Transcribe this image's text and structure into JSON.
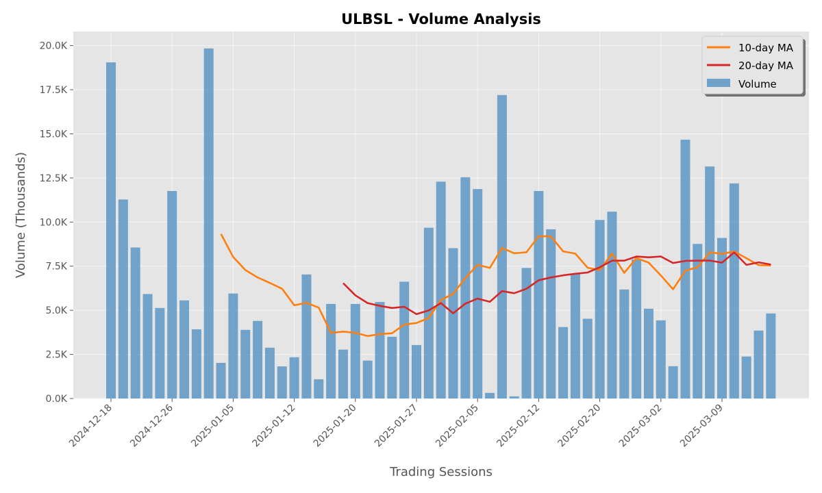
{
  "chart_data": {
    "type": "bar",
    "title": "ULBSL - Volume Analysis",
    "xlabel": "Trading Sessions",
    "ylabel": "Volume (Thousands)",
    "ylim": [
      0,
      20800
    ],
    "yticks": [
      0,
      2500,
      5000,
      7500,
      10000,
      12500,
      15000,
      17500,
      20000
    ],
    "ytick_labels": [
      "0.0K",
      "2.5K",
      "5.0K",
      "7.5K",
      "10.0K",
      "12.5K",
      "15.0K",
      "17.5K",
      "20.0K"
    ],
    "xtick_labels": [
      "2024-12-18",
      "2024-12-26",
      "2025-01-05",
      "2025-01-12",
      "2025-01-20",
      "2025-01-27",
      "2025-02-05",
      "2025-02-12",
      "2025-02-20",
      "2025-03-02",
      "2025-03-09"
    ],
    "xtick_positions": [
      0,
      5,
      10,
      15,
      20,
      25,
      30,
      35,
      40,
      45,
      50
    ],
    "grid": true,
    "legend_position": "top-right",
    "colors": {
      "volume": "#5d98c6",
      "ma10": "#ff7f0e",
      "ma20": "#d62728",
      "plot_bg": "#e5e5e5",
      "grid": "#f5f5f5"
    },
    "series": [
      {
        "name": "Volume",
        "kind": "bar",
        "values": [
          19050,
          11280,
          8560,
          5920,
          5130,
          11760,
          5560,
          3920,
          19840,
          2020,
          5950,
          3890,
          4400,
          2880,
          1820,
          2340,
          7030,
          1090,
          5360,
          2770,
          5360,
          2150,
          5470,
          3500,
          6620,
          3030,
          9680,
          12290,
          8520,
          12540,
          11870,
          320,
          17200,
          120,
          7400,
          11760,
          9590,
          4050,
          7080,
          4520,
          10120,
          10590,
          6180,
          7880,
          5090,
          4430,
          1830,
          14670,
          8760,
          13150,
          9100,
          12190,
          2380,
          3850,
          4820
        ]
      },
      {
        "name": "10-day MA",
        "kind": "line",
        "values": [
          null,
          null,
          null,
          null,
          null,
          null,
          null,
          null,
          null,
          9330,
          8020,
          7280,
          6860,
          6550,
          6220,
          5280,
          5430,
          5150,
          3720,
          3790,
          3720,
          3540,
          3650,
          3700,
          4190,
          4280,
          4560,
          5580,
          5930,
          6830,
          7580,
          7400,
          8530,
          8230,
          8290,
          9200,
          9190,
          8340,
          8210,
          7410,
          7280,
          8210,
          7120,
          7960,
          7700,
          6970,
          6190,
          7250,
          7440,
          8280,
          8200,
          8330,
          7950,
          7560,
          7540
        ]
      },
      {
        "name": "20-day MA",
        "kind": "line",
        "values": [
          null,
          null,
          null,
          null,
          null,
          null,
          null,
          null,
          null,
          null,
          null,
          null,
          null,
          null,
          null,
          null,
          null,
          null,
          null,
          6540,
          5850,
          5410,
          5250,
          5130,
          5200,
          4780,
          4990,
          5410,
          4830,
          5380,
          5660,
          5480,
          6090,
          5970,
          6220,
          6700,
          6860,
          6980,
          7070,
          7140,
          7440,
          7810,
          7810,
          8050,
          8000,
          8050,
          7680,
          7800,
          7810,
          7820,
          7700,
          8280,
          7570,
          7720,
          7590
        ]
      }
    ]
  }
}
